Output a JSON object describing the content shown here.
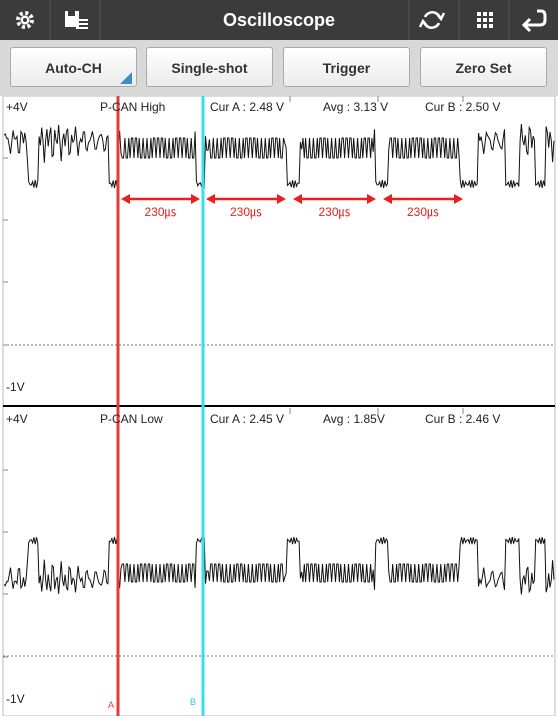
{
  "header": {
    "title": "Oscilloscope"
  },
  "buttons": [
    "Auto-CH",
    "Single-shot",
    "Trigger",
    "Zero Set"
  ],
  "channels": [
    {
      "top": "+4V",
      "name": "P-CAN High",
      "cur_a": "Cur A : 2.48 V",
      "avg": "Avg : 3.13 V",
      "cur_b": "Cur B : 2.50 V",
      "bottom": "-1V"
    },
    {
      "top": "+4V",
      "name": "P-CAN Low",
      "cur_a": "Cur A : 2.45 V",
      "avg": "Avg : 1.85V",
      "cur_b": "Cur B : 2.46 V",
      "bottom": "-1V"
    }
  ],
  "annotations": [
    "230㎲",
    "230㎲",
    "230㎲",
    "230㎲"
  ],
  "cursors": [
    "A",
    "B"
  ]
}
